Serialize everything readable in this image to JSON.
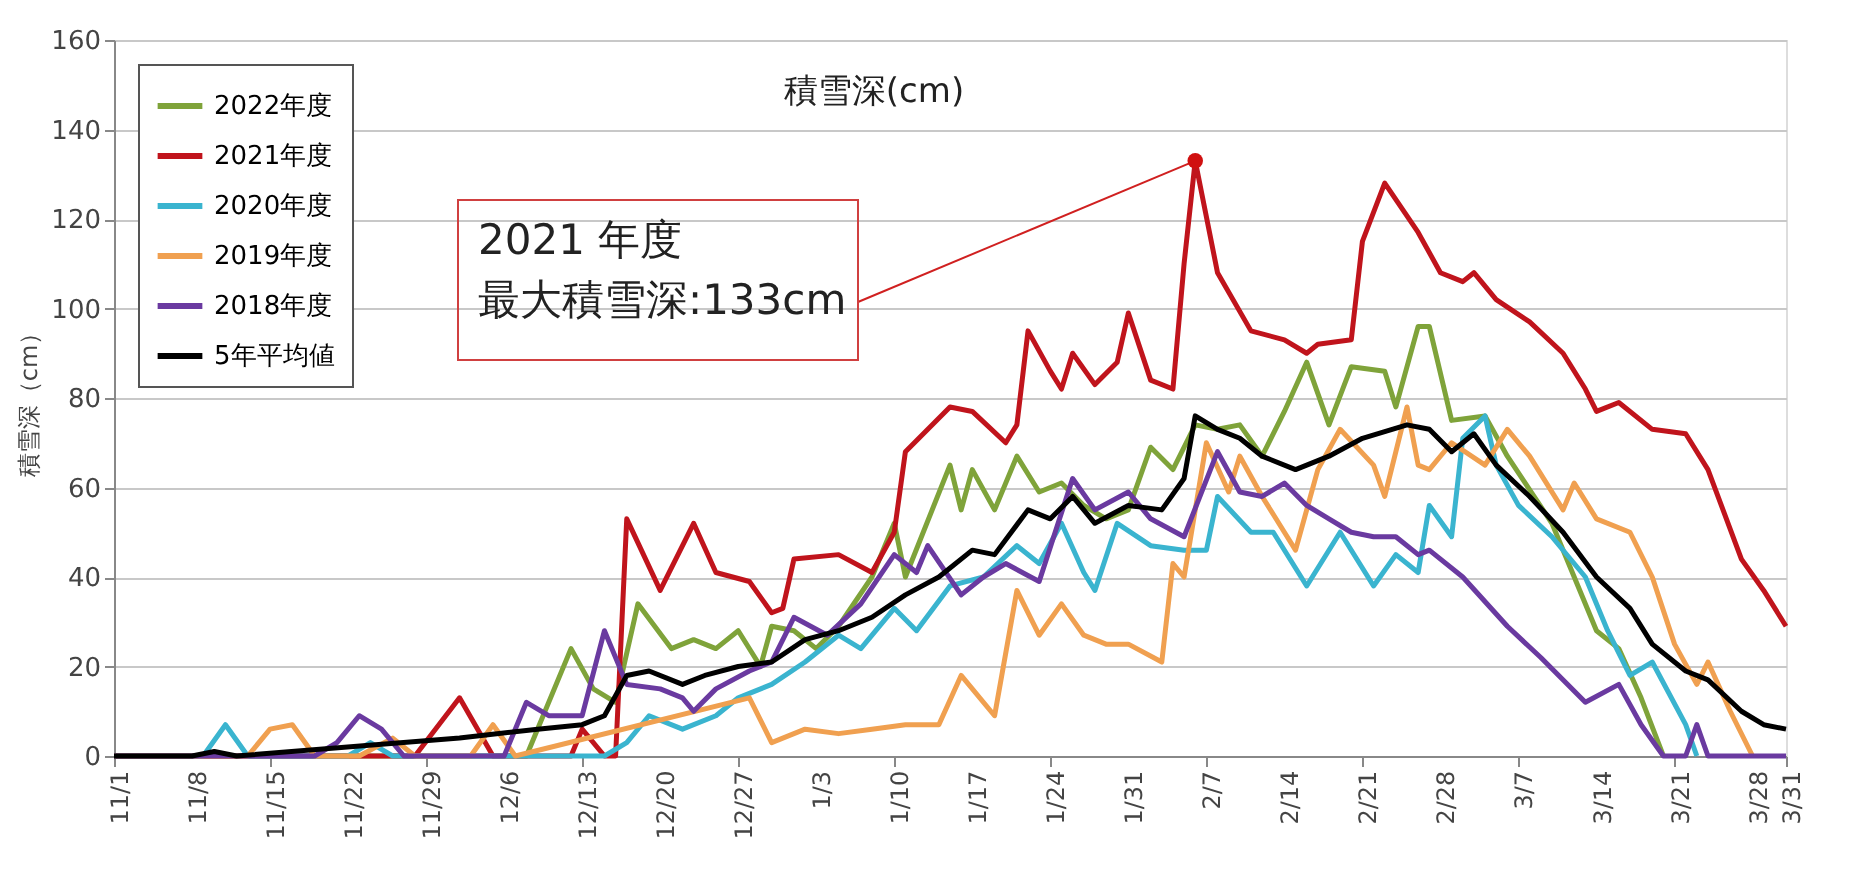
{
  "chart_data": {
    "type": "line",
    "title": "積雪深(cm)",
    "ylabel": "積雪深（cm）",
    "xlim": [
      "2021-11-01",
      "2022-03-31"
    ],
    "xticks": [
      {
        "value": "2021-11-01",
        "label": "11/1"
      },
      {
        "value": "2021-11-08",
        "label": "11/8"
      },
      {
        "value": "2021-11-15",
        "label": "11/15"
      },
      {
        "value": "2021-11-22",
        "label": "11/22"
      },
      {
        "value": "2021-11-29",
        "label": "11/29"
      },
      {
        "value": "2021-12-06",
        "label": "12/6"
      },
      {
        "value": "2021-12-13",
        "label": "12/13"
      },
      {
        "value": "2021-12-20",
        "label": "12/20"
      },
      {
        "value": "2021-12-27",
        "label": "12/27"
      },
      {
        "value": "2022-01-03",
        "label": "1/3"
      },
      {
        "value": "2022-01-10",
        "label": "1/10"
      },
      {
        "value": "2022-01-17",
        "label": "1/17"
      },
      {
        "value": "2022-01-24",
        "label": "1/24"
      },
      {
        "value": "2022-01-31",
        "label": "1/31"
      },
      {
        "value": "2022-02-07",
        "label": "2/7"
      },
      {
        "value": "2022-02-14",
        "label": "2/14"
      },
      {
        "value": "2022-02-21",
        "label": "2/21"
      },
      {
        "value": "2022-02-28",
        "label": "2/28"
      },
      {
        "value": "2022-03-07",
        "label": "3/7"
      },
      {
        "value": "2022-03-14",
        "label": "3/14"
      },
      {
        "value": "2022-03-21",
        "label": "3/21"
      },
      {
        "value": "2022-03-28",
        "label": "3/28"
      },
      {
        "value": "2022-03-31",
        "label": "3/31"
      }
    ],
    "ylim": [
      0,
      160
    ],
    "yticks": [
      0,
      20,
      40,
      60,
      80,
      100,
      120,
      140,
      160
    ],
    "grid": "y",
    "legend": "top left",
    "marker": "none",
    "line_style": "solid",
    "annotations": [
      "2021 年度",
      {
        "text": "最大積雪深:133cm",
        "x": "2022-02-06",
        "y": 133
      }
    ],
    "series": [
      {
        "name": "2022年度",
        "color": "#7fa33a",
        "x": [
          "2021-11-01",
          "2021-12-08",
          "2021-12-12",
          "2021-12-14",
          "2021-12-16",
          "2021-12-18",
          "2021-12-21",
          "2021-12-23",
          "2021-12-25",
          "2021-12-27",
          "2021-12-29",
          "2021-12-30",
          "2022-01-01",
          "2022-01-03",
          "2022-01-05",
          "2022-01-08",
          "2022-01-10",
          "2022-01-11",
          "2022-01-15",
          "2022-01-16",
          "2022-01-17",
          "2022-01-19",
          "2022-01-21",
          "2022-01-23",
          "2022-01-25",
          "2022-01-27",
          "2022-01-29",
          "2022-01-31",
          "2022-02-02",
          "2022-02-04",
          "2022-02-06",
          "2022-02-08",
          "2022-02-10",
          "2022-02-12",
          "2022-02-14",
          "2022-02-16",
          "2022-02-18",
          "2022-02-20",
          "2022-02-23",
          "2022-02-24",
          "2022-02-26",
          "2022-02-27",
          "2022-03-01",
          "2022-03-04",
          "2022-03-06",
          "2022-03-10",
          "2022-03-14",
          "2022-03-16",
          "2022-03-18",
          "2022-03-20"
        ],
        "values": [
          0,
          0,
          24,
          15,
          12,
          34,
          24,
          26,
          24,
          28,
          20,
          29,
          28,
          24,
          29,
          40,
          52,
          40,
          65,
          55,
          64,
          55,
          67,
          59,
          61,
          56,
          53,
          55,
          69,
          64,
          74,
          73,
          74,
          67,
          77,
          88,
          74,
          87,
          86,
          78,
          96,
          96,
          75,
          76,
          67,
          52,
          28,
          24,
          13,
          0
        ]
      },
      {
        "name": "2021年度",
        "color": "#c0141c",
        "x": [
          "2021-11-01",
          "2021-11-28",
          "2021-12-02",
          "2021-12-05",
          "2021-12-12",
          "2021-12-13",
          "2021-12-15",
          "2021-12-16",
          "2021-12-17",
          "2021-12-20",
          "2021-12-23",
          "2021-12-25",
          "2021-12-28",
          "2021-12-30",
          "2021-12-31",
          "2022-01-01",
          "2022-01-05",
          "2022-01-08",
          "2022-01-10",
          "2022-01-11",
          "2022-01-15",
          "2022-01-17",
          "2022-01-20",
          "2022-01-21",
          "2022-01-22",
          "2022-01-24",
          "2022-01-25",
          "2022-01-26",
          "2022-01-28",
          "2022-01-30",
          "2022-01-31",
          "2022-02-02",
          "2022-02-04",
          "2022-02-05",
          "2022-02-06",
          "2022-02-08",
          "2022-02-11",
          "2022-02-14",
          "2022-02-16",
          "2022-02-17",
          "2022-02-20",
          "2022-02-21",
          "2022-02-23",
          "2022-02-26",
          "2022-02-28",
          "2022-03-02",
          "2022-03-03",
          "2022-03-05",
          "2022-03-08",
          "2022-03-11",
          "2022-03-13",
          "2022-03-14",
          "2022-03-16",
          "2022-03-19",
          "2022-03-22",
          "2022-03-24",
          "2022-03-27",
          "2022-03-29",
          "2022-03-31"
        ],
        "values": [
          0,
          0,
          13,
          0,
          0,
          6,
          0,
          0,
          53,
          37,
          52,
          41,
          39,
          32,
          33,
          44,
          45,
          41,
          50,
          68,
          78,
          77,
          70,
          74,
          95,
          86,
          82,
          90,
          83,
          88,
          99,
          84,
          82,
          110,
          133,
          108,
          95,
          93,
          90,
          92,
          93,
          115,
          128,
          117,
          108,
          106,
          108,
          102,
          97,
          90,
          82,
          77,
          79,
          73,
          72,
          64,
          44,
          37,
          29
        ]
      },
      {
        "name": "2020年度",
        "color": "#3ab4cf",
        "x": [
          "2021-11-01",
          "2021-11-09",
          "2021-11-11",
          "2021-11-13",
          "2021-11-22",
          "2021-11-24",
          "2021-11-26",
          "2021-12-15",
          "2021-12-17",
          "2021-12-19",
          "2021-12-22",
          "2021-12-25",
          "2021-12-27",
          "2021-12-30",
          "2022-01-02",
          "2022-01-05",
          "2022-01-07",
          "2022-01-10",
          "2022-01-12",
          "2022-01-15",
          "2022-01-18",
          "2022-01-21",
          "2022-01-23",
          "2022-01-25",
          "2022-01-27",
          "2022-01-28",
          "2022-01-30",
          "2022-02-02",
          "2022-02-05",
          "2022-02-07",
          "2022-02-08",
          "2022-02-11",
          "2022-02-13",
          "2022-02-16",
          "2022-02-19",
          "2022-02-22",
          "2022-02-24",
          "2022-02-26",
          "2022-02-27",
          "2022-03-01",
          "2022-03-02",
          "2022-03-04",
          "2022-03-05",
          "2022-03-07",
          "2022-03-10",
          "2022-03-13",
          "2022-03-15",
          "2022-03-17",
          "2022-03-19",
          "2022-03-22",
          "2022-03-23"
        ],
        "values": [
          0,
          0,
          7,
          0,
          0,
          3,
          0,
          0,
          3,
          9,
          6,
          9,
          13,
          16,
          21,
          27,
          24,
          33,
          28,
          38,
          40,
          47,
          43,
          52,
          41,
          37,
          52,
          47,
          46,
          46,
          58,
          50,
          50,
          38,
          50,
          38,
          45,
          41,
          56,
          49,
          71,
          76,
          65,
          56,
          49,
          40,
          28,
          18,
          21,
          7,
          0
        ]
      },
      {
        "name": "2019年度",
        "color": "#f0a050",
        "x": [
          "2021-11-01",
          "2021-11-13",
          "2021-11-15",
          "2021-11-17",
          "2021-11-19",
          "2021-11-23",
          "2021-11-26",
          "2021-11-28",
          "2021-12-03",
          "2021-12-05",
          "2021-12-07",
          "2021-12-28",
          "2021-12-30",
          "2022-01-02",
          "2022-01-05",
          "2022-01-08",
          "2022-01-11",
          "2022-01-14",
          "2022-01-16",
          "2022-01-19",
          "2022-01-21",
          "2022-01-23",
          "2022-01-25",
          "2022-01-27",
          "2022-01-29",
          "2022-01-31",
          "2022-02-03",
          "2022-02-04",
          "2022-02-05",
          "2022-02-07",
          "2022-02-09",
          "2022-02-10",
          "2022-02-12",
          "2022-02-14",
          "2022-02-15",
          "2022-02-17",
          "2022-02-19",
          "2022-02-22",
          "2022-02-23",
          "2022-02-25",
          "2022-02-26",
          "2022-02-27",
          "2022-03-01",
          "2022-03-04",
          "2022-03-06",
          "2022-03-08",
          "2022-03-11",
          "2022-03-12",
          "2022-03-14",
          "2022-03-17",
          "2022-03-19",
          "2022-03-21",
          "2022-03-23",
          "2022-03-24",
          "2022-03-26",
          "2022-03-28"
        ],
        "values": [
          0,
          0,
          6,
          7,
          0,
          0,
          4,
          0,
          0,
          7,
          0,
          13,
          3,
          6,
          5,
          6,
          7,
          7,
          18,
          9,
          37,
          27,
          34,
          27,
          25,
          25,
          21,
          43,
          40,
          70,
          59,
          67,
          58,
          50,
          46,
          64,
          73,
          65,
          58,
          78,
          65,
          64,
          70,
          65,
          73,
          67,
          55,
          61,
          53,
          50,
          40,
          25,
          16,
          21,
          10,
          0
        ]
      },
      {
        "name": "2018年度",
        "color": "#6a3aa0",
        "x": [
          "2021-11-01",
          "2021-11-19",
          "2021-11-21",
          "2021-11-23",
          "2021-11-25",
          "2021-11-27",
          "2021-12-06",
          "2021-12-08",
          "2021-12-10",
          "2021-12-13",
          "2021-12-15",
          "2021-12-17",
          "2021-12-20",
          "2021-12-22",
          "2021-12-23",
          "2021-12-25",
          "2021-12-28",
          "2021-12-30",
          "2022-01-01",
          "2022-01-04",
          "2022-01-07",
          "2022-01-10",
          "2022-01-12",
          "2022-01-13",
          "2022-01-16",
          "2022-01-18",
          "2022-01-20",
          "2022-01-23",
          "2022-01-26",
          "2022-01-28",
          "2022-01-31",
          "2022-02-02",
          "2022-02-05",
          "2022-02-08",
          "2022-02-10",
          "2022-02-12",
          "2022-02-14",
          "2022-02-16",
          "2022-02-18",
          "2022-02-20",
          "2022-02-22",
          "2022-02-24",
          "2022-02-26",
          "2022-02-27",
          "2022-03-02",
          "2022-03-06",
          "2022-03-09",
          "2022-03-13",
          "2022-03-16",
          "2022-03-18",
          "2022-03-20",
          "2022-03-22",
          "2022-03-23",
          "2022-03-24",
          "2022-03-31"
        ],
        "values": [
          0,
          0,
          3,
          9,
          6,
          0,
          0,
          12,
          9,
          9,
          28,
          16,
          15,
          13,
          10,
          15,
          19,
          21,
          31,
          27,
          34,
          45,
          41,
          47,
          36,
          40,
          43,
          39,
          62,
          55,
          59,
          53,
          49,
          68,
          59,
          58,
          61,
          56,
          53,
          50,
          49,
          49,
          45,
          46,
          40,
          29,
          22,
          12,
          16,
          7,
          0,
          0,
          7,
          0,
          0
        ]
      },
      {
        "name": "5年平均値",
        "color": "#000000",
        "x": [
          "2021-11-01",
          "2021-11-08",
          "2021-11-10",
          "2021-11-12",
          "2021-12-02",
          "2021-12-09",
          "2021-12-13",
          "2021-12-15",
          "2021-12-17",
          "2021-12-19",
          "2021-12-22",
          "2021-12-24",
          "2021-12-27",
          "2021-12-30",
          "2022-01-02",
          "2022-01-05",
          "2022-01-08",
          "2022-01-11",
          "2022-01-14",
          "2022-01-17",
          "2022-01-19",
          "2022-01-22",
          "2022-01-24",
          "2022-01-26",
          "2022-01-28",
          "2022-01-31",
          "2022-02-03",
          "2022-02-05",
          "2022-02-06",
          "2022-02-08",
          "2022-02-10",
          "2022-02-12",
          "2022-02-15",
          "2022-02-18",
          "2022-02-21",
          "2022-02-25",
          "2022-02-27",
          "2022-03-01",
          "2022-03-03",
          "2022-03-05",
          "2022-03-08",
          "2022-03-11",
          "2022-03-14",
          "2022-03-17",
          "2022-03-19",
          "2022-03-22",
          "2022-03-24",
          "2022-03-27",
          "2022-03-29",
          "2022-03-31"
        ],
        "values": [
          0,
          0,
          1,
          0,
          4,
          6,
          7,
          9,
          18,
          19,
          16,
          18,
          20,
          21,
          26,
          28,
          31,
          36,
          40,
          46,
          45,
          55,
          53,
          58,
          52,
          56,
          55,
          62,
          76,
          73,
          71,
          67,
          64,
          67,
          71,
          74,
          73,
          68,
          72,
          65,
          58,
          50,
          40,
          33,
          25,
          19,
          17,
          10,
          7,
          6
        ]
      }
    ]
  }
}
